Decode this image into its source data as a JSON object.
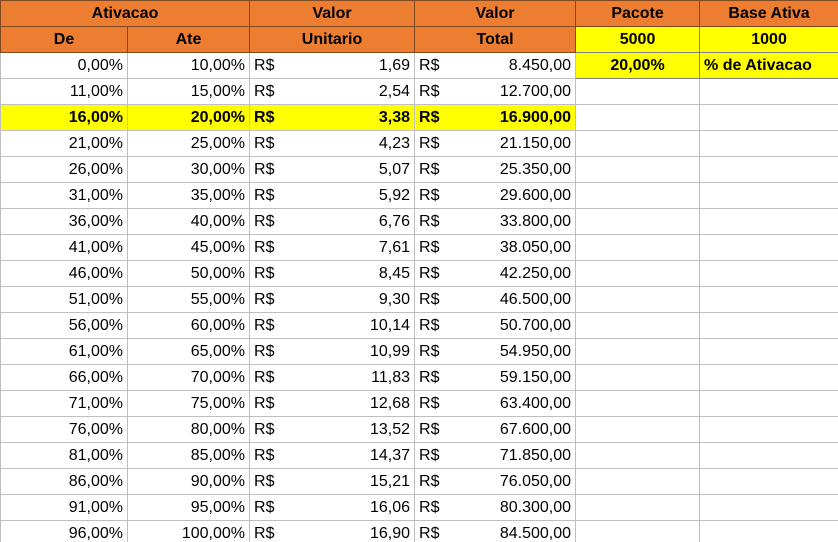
{
  "header": {
    "ativacao": "Ativacao",
    "valor1": "Valor",
    "valor2": "Valor",
    "pacote": "Pacote",
    "base_ativa": "Base Ativa",
    "de": "De",
    "ate": "Ate",
    "unitario": "Unitario",
    "total": "Total",
    "pacote_value": "5000",
    "base_ativa_value": "1000",
    "percent_value": "20,00%",
    "percent_label": "% de Ativacao"
  },
  "currency": "R$",
  "highlight_row_index": 2,
  "rows": [
    {
      "de": "0,00%",
      "ate": "10,00%",
      "unit": "1,69",
      "total": "8.450,00"
    },
    {
      "de": "11,00%",
      "ate": "15,00%",
      "unit": "2,54",
      "total": "12.700,00"
    },
    {
      "de": "16,00%",
      "ate": "20,00%",
      "unit": "3,38",
      "total": "16.900,00"
    },
    {
      "de": "21,00%",
      "ate": "25,00%",
      "unit": "4,23",
      "total": "21.150,00"
    },
    {
      "de": "26,00%",
      "ate": "30,00%",
      "unit": "5,07",
      "total": "25.350,00"
    },
    {
      "de": "31,00%",
      "ate": "35,00%",
      "unit": "5,92",
      "total": "29.600,00"
    },
    {
      "de": "36,00%",
      "ate": "40,00%",
      "unit": "6,76",
      "total": "33.800,00"
    },
    {
      "de": "41,00%",
      "ate": "45,00%",
      "unit": "7,61",
      "total": "38.050,00"
    },
    {
      "de": "46,00%",
      "ate": "50,00%",
      "unit": "8,45",
      "total": "42.250,00"
    },
    {
      "de": "51,00%",
      "ate": "55,00%",
      "unit": "9,30",
      "total": "46.500,00"
    },
    {
      "de": "56,00%",
      "ate": "60,00%",
      "unit": "10,14",
      "total": "50.700,00"
    },
    {
      "de": "61,00%",
      "ate": "65,00%",
      "unit": "10,99",
      "total": "54.950,00"
    },
    {
      "de": "66,00%",
      "ate": "70,00%",
      "unit": "11,83",
      "total": "59.150,00"
    },
    {
      "de": "71,00%",
      "ate": "75,00%",
      "unit": "12,68",
      "total": "63.400,00"
    },
    {
      "de": "76,00%",
      "ate": "80,00%",
      "unit": "13,52",
      "total": "67.600,00"
    },
    {
      "de": "81,00%",
      "ate": "85,00%",
      "unit": "14,37",
      "total": "71.850,00"
    },
    {
      "de": "86,00%",
      "ate": "90,00%",
      "unit": "15,21",
      "total": "76.050,00"
    },
    {
      "de": "91,00%",
      "ate": "95,00%",
      "unit": "16,06",
      "total": "80.300,00"
    },
    {
      "de": "96,00%",
      "ate": "100,00%",
      "unit": "16,90",
      "total": "84.500,00"
    }
  ]
}
